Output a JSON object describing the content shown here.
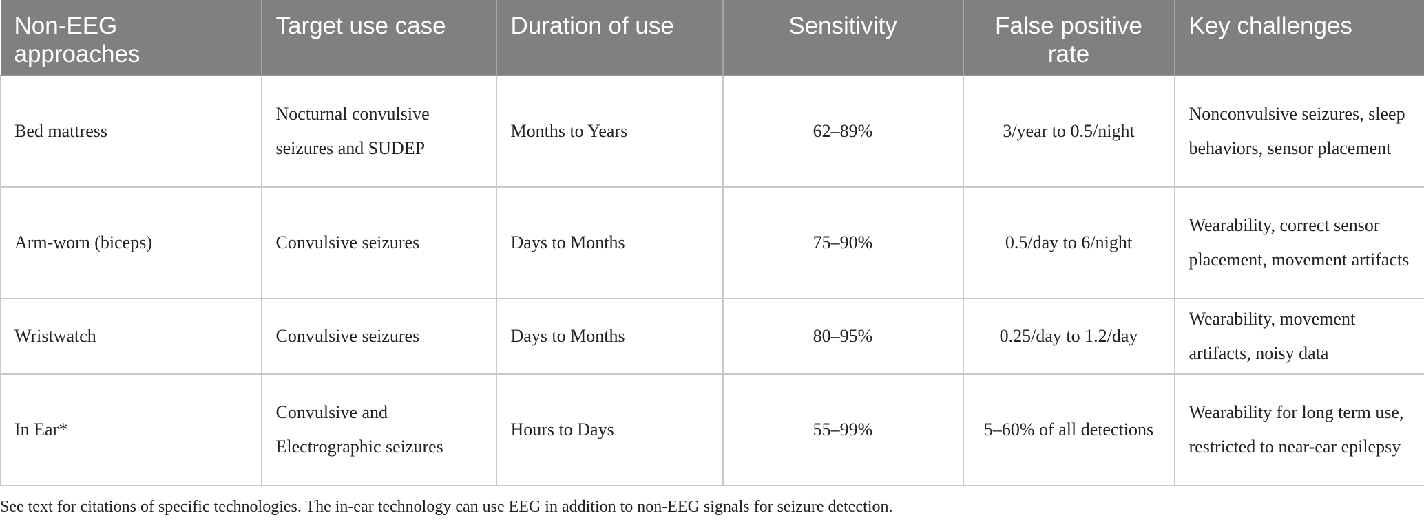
{
  "table": {
    "headers": [
      "Non-EEG approaches",
      "Target use case",
      "Duration of use",
      "Sensitivity",
      "False positive rate",
      "Key challenges"
    ],
    "rows": [
      {
        "approach": "Bed mattress",
        "use_case": "Nocturnal convulsive seizures and SUDEP",
        "duration": "Months to Years",
        "sensitivity": "62–89%",
        "false_positive_rate": "3/year to 0.5/night",
        "challenges": "Nonconvulsive seizures, sleep behaviors, sensor placement"
      },
      {
        "approach": "Arm-worn (biceps)",
        "use_case": "Convulsive seizures",
        "duration": "Days to Months",
        "sensitivity": "75–90%",
        "false_positive_rate": "0.5/day to 6/night",
        "challenges": "Wearability, correct sensor placement, movement artifacts"
      },
      {
        "approach": "Wristwatch",
        "use_case": "Convulsive seizures",
        "duration": "Days to Months",
        "sensitivity": "80–95%",
        "false_positive_rate": "0.25/day to 1.2/day",
        "challenges": "Wearability, movement artifacts, noisy data"
      },
      {
        "approach": "In Ear*",
        "use_case": "Convulsive and Electrographic seizures",
        "duration": "Hours to Days",
        "sensitivity": "55–99%",
        "false_positive_rate": "5–60% of all detections",
        "challenges": "Wearability for long term use, restricted to near-ear epilepsy"
      }
    ]
  },
  "footnote": "See text for citations of specific technologies. The in-ear technology can use EEG in addition to non-EEG signals for seizure detection."
}
